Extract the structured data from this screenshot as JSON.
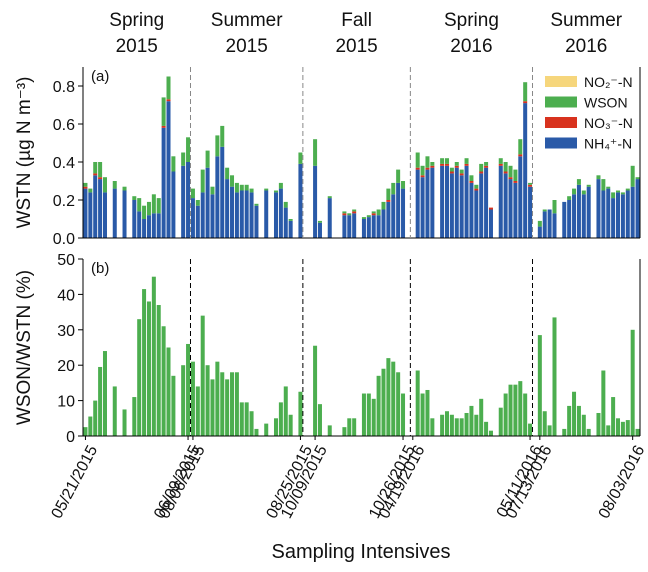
{
  "chart_data": {
    "type": "bar",
    "x_label": "Sampling Intensives",
    "groups": [
      {
        "title": [
          "Spring",
          "2015"
        ],
        "categories": [
          "05/21/2015",
          null,
          null,
          null,
          null,
          null,
          null,
          null,
          null,
          null,
          null,
          null,
          null,
          null,
          null,
          null,
          null,
          null,
          null,
          null,
          null,
          "06/09/2015"
        ]
      },
      {
        "title": [
          "Summer",
          "2015"
        ],
        "categories": [
          "08/06/2015",
          null,
          null,
          null,
          null,
          null,
          null,
          null,
          null,
          null,
          null,
          null,
          null,
          null,
          null,
          null,
          null,
          null,
          null,
          null,
          null,
          null,
          "08/25/2015"
        ]
      },
      {
        "title": [
          "Fall",
          "2015"
        ],
        "categories": [
          null,
          null,
          "10/09/2015",
          null,
          null,
          null,
          null,
          null,
          null,
          null,
          null,
          null,
          null,
          null,
          null,
          null,
          null,
          null,
          null,
          null,
          "10/26/2015",
          null
        ]
      },
      {
        "title": [
          "Spring",
          "2016"
        ],
        "categories": [
          "04/19/2016",
          null,
          null,
          null,
          null,
          null,
          null,
          null,
          null,
          null,
          null,
          null,
          null,
          null,
          null,
          null,
          null,
          null,
          null,
          null,
          null,
          null,
          null,
          null,
          "05/11/2016"
        ]
      },
      {
        "title": [
          "Summer",
          "2016"
        ],
        "categories": [
          null,
          "07/13/2016",
          null,
          null,
          null,
          null,
          null,
          null,
          null,
          null,
          null,
          null,
          null,
          null,
          null,
          null,
          null,
          null,
          null,
          null,
          "08/03/2016",
          null
        ]
      }
    ],
    "panels": [
      {
        "label": "(a)",
        "y_label": "WSTN (µg N m⁻³)",
        "stacked": true,
        "ylim": [
          0,
          0.9
        ],
        "yticks": [
          {
            "value": 0,
            "label": "0.0"
          },
          0.2,
          0.4,
          0.6,
          0.8
        ],
        "series": [
          {
            "name": "NH₄⁺-N",
            "color": "#2a5aa8",
            "values": [
              [
                0.26,
                0.24,
                0.33,
                0.31,
                0.24,
                null,
                0.26,
                null,
                0.25,
                null,
                0.2,
                0.14,
                0.1,
                0.12,
                0.13,
                0.13,
                0.58,
                0.72,
                0.35,
                null,
                0.38,
                0.4
              ],
              [
                0.21,
                0.17,
                0.24,
                0.37,
                0.23,
                0.43,
                0.48,
                0.31,
                0.27,
                0.24,
                0.25,
                0.25,
                0.24,
                0.17,
                null,
                0.25,
                null,
                0.24,
                0.26,
                0.16,
                0.09,
                null,
                0.39
              ],
              [
                null,
                null,
                0.38,
                0.08,
                null,
                0.21,
                null,
                null,
                0.12,
                0.12,
                0.13,
                null,
                0.1,
                0.11,
                0.12,
                0.12,
                0.15,
                0.19,
                0.23,
                0.29,
                0.26,
                null
              ],
              [
                null,
                0.36,
                0.32,
                0.36,
                0.37,
                null,
                0.38,
                0.38,
                0.34,
                0.37,
                0.33,
                0.38,
                0.29,
                0.25,
                0.34,
                0.37,
                0.15,
                null,
                0.38,
                0.34,
                0.31,
                0.29,
                0.43,
                0.71,
                0.27
              ],
              [
                null,
                0.06,
                0.14,
                0.15,
                0.13,
                null,
                0.19,
                0.2,
                0.23,
                0.28,
                0.23,
                0.27,
                null,
                0.31,
                0.25,
                0.26,
                0.21,
                0.24,
                0.23,
                0.25,
                0.27,
                0.31
              ]
            ]
          },
          {
            "name": "NO₃⁻-N",
            "color": "#d8321e",
            "values": [
              [
                0.01,
                0,
                0.01,
                0.01,
                0,
                null,
                0,
                null,
                0,
                null,
                0,
                0,
                0,
                0,
                0,
                0,
                0.01,
                0.01,
                0,
                null,
                0,
                0
              ],
              [
                0,
                0,
                0,
                0,
                0,
                0,
                0,
                0,
                0,
                0,
                0,
                0,
                0,
                0,
                null,
                0,
                null,
                0,
                0,
                0,
                0,
                null,
                0
              ],
              [
                null,
                null,
                0,
                0,
                null,
                0,
                null,
                null,
                0.01,
                0,
                0.01,
                null,
                0,
                0,
                0.01,
                0,
                0,
                0.01,
                0,
                0,
                0,
                null
              ],
              [
                null,
                0.01,
                0.01,
                0.01,
                0.01,
                null,
                0.01,
                0.01,
                0.01,
                0.01,
                0.01,
                0.01,
                0.01,
                0.01,
                0.01,
                0.01,
                0.01,
                null,
                0.01,
                0.01,
                0.01,
                0.01,
                0.01,
                0.01,
                0.01
              ],
              [
                null,
                0,
                0,
                0,
                0,
                null,
                0,
                0,
                0,
                0,
                0,
                0,
                null,
                0,
                0,
                0,
                0,
                0,
                0,
                0,
                0,
                0
              ]
            ]
          },
          {
            "name": "WSON",
            "color": "#4cae4f",
            "values": [
              [
                0.02,
                0.02,
                0.06,
                0.08,
                0.08,
                null,
                0.04,
                null,
                0.02,
                null,
                0.02,
                0.07,
                0.07,
                0.07,
                0.1,
                0.08,
                0.15,
                0.12,
                0.08,
                null,
                0.07,
                0.13
              ],
              [
                0.05,
                0.03,
                0.12,
                0.09,
                0.04,
                0.11,
                0.11,
                0.06,
                0.06,
                0.05,
                0.03,
                0.03,
                0.02,
                0.01,
                null,
                0.01,
                null,
                0.01,
                0.03,
                0.03,
                0.01,
                null,
                0.06
              ],
              [
                null,
                null,
                0.14,
                0.01,
                null,
                0.01,
                null,
                null,
                0.01,
                0.01,
                0.01,
                null,
                0.01,
                0.01,
                0.01,
                0.03,
                0.04,
                0.06,
                0.06,
                0.07,
                0.04,
                null
              ],
              [
                null,
                0.08,
                0.05,
                0.06,
                0.02,
                null,
                0.03,
                0.03,
                0.02,
                0.02,
                0.02,
                0.03,
                0.03,
                0.02,
                0.04,
                0.02,
                0,
                null,
                0.03,
                0.05,
                0.06,
                0.06,
                0.08,
                0.1,
                0.01
              ],
              [
                null,
                0.03,
                0.01,
                0,
                0.07,
                null,
                0,
                0.02,
                0.03,
                0.03,
                0.02,
                0.01,
                null,
                0.02,
                0.06,
                0.01,
                0.03,
                0.01,
                0.01,
                0.01,
                0.11,
                0.01
              ]
            ]
          },
          {
            "name": "NO₂⁻-N",
            "color": "#f6d67c",
            "values": [
              [
                0,
                0,
                0,
                0,
                0,
                null,
                0,
                null,
                0,
                null,
                0,
                0,
                0,
                0,
                0,
                0,
                0,
                0,
                0,
                null,
                0,
                0
              ],
              [
                0,
                0,
                0,
                0,
                0,
                0,
                0,
                0,
                0,
                0,
                0,
                0,
                0,
                0,
                null,
                0,
                null,
                0,
                0,
                0,
                0,
                null,
                0
              ],
              [
                null,
                null,
                0,
                0,
                null,
                0,
                null,
                null,
                0,
                0,
                0,
                null,
                0,
                0,
                0,
                0,
                0,
                0,
                0,
                0,
                0,
                null
              ],
              [
                null,
                0,
                0,
                0,
                0,
                null,
                0,
                0,
                0,
                0,
                0,
                0,
                0,
                0,
                0,
                0,
                0,
                null,
                0,
                0,
                0,
                0,
                0,
                0,
                0
              ],
              [
                null,
                0,
                0,
                0,
                0,
                null,
                0,
                0,
                0,
                0,
                0,
                0,
                null,
                0,
                0,
                0,
                0,
                0,
                0,
                0,
                0,
                0
              ]
            ]
          }
        ]
      },
      {
        "label": "(b)",
        "y_label": "WSON/WSTN (%)",
        "stacked": false,
        "ylim": [
          0,
          50
        ],
        "yticks": [
          0,
          10,
          20,
          30,
          40,
          50
        ],
        "series": [
          {
            "color": "#4cae4f",
            "values": [
              [
                2.5,
                5.5,
                10,
                19.5,
                24,
                null,
                14,
                null,
                7.5,
                null,
                11,
                33,
                41.5,
                38,
                45,
                37,
                31,
                25,
                17,
                null,
                20,
                26
              ],
              [
                21,
                14,
                34,
                20,
                16,
                21,
                18,
                16,
                18,
                18,
                9.5,
                9.5,
                7,
                2,
                null,
                3.5,
                null,
                5,
                9.5,
                14,
                6,
                null,
                12.5
              ],
              [
                null,
                null,
                25.5,
                9,
                null,
                3,
                null,
                null,
                2.5,
                5,
                5,
                null,
                12,
                12,
                10.5,
                17,
                19,
                22,
                21,
                18,
                12,
                null
              ],
              [
                null,
                18.5,
                12,
                13,
                5,
                null,
                6,
                7,
                6,
                5,
                5,
                6.5,
                8.5,
                6,
                10.5,
                4,
                1.5,
                null,
                8,
                12,
                14.5,
                14.5,
                15.5,
                12,
                3.5
              ],
              [
                null,
                28.5,
                7,
                3,
                33.5,
                null,
                2,
                8.5,
                12.5,
                8.5,
                6,
                2,
                null,
                6.5,
                18.5,
                3,
                11,
                5,
                4,
                4.5,
                30,
                2
              ]
            ]
          }
        ]
      }
    ]
  }
}
